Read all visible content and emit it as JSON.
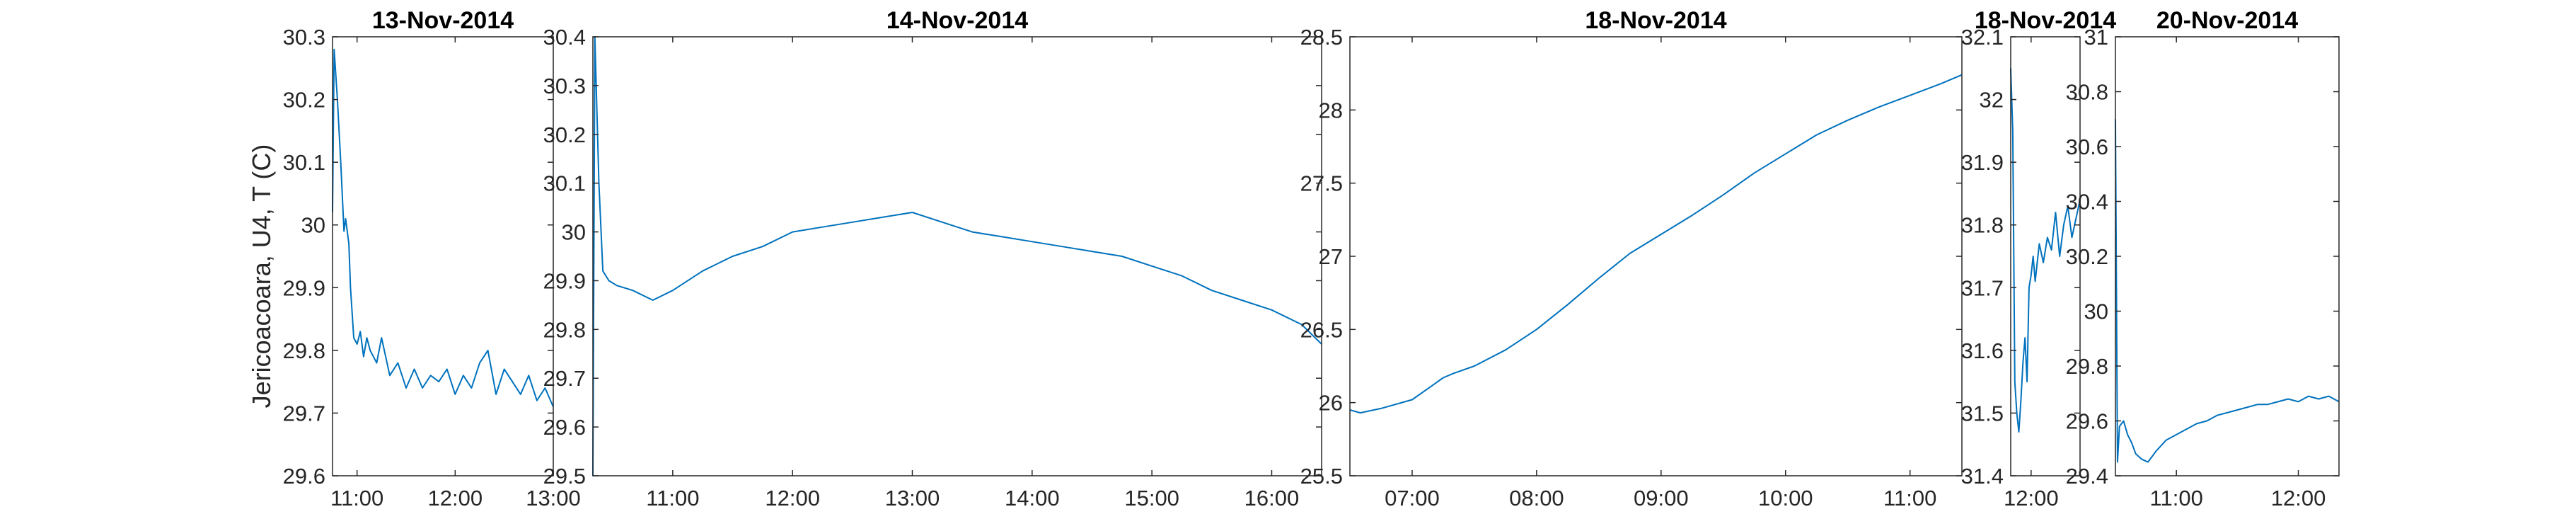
{
  "figure": {
    "ylabel": "Jericoacoara, U4, T (C)",
    "line_color": "#0072BD",
    "axis_color": "#262626"
  },
  "chart_data": [
    {
      "type": "line",
      "title": "13-Nov-2014",
      "ylabel": "Jericoacoara, U4, T (C)",
      "xlim": [
        "10:45",
        "13:00"
      ],
      "ylim": [
        29.6,
        30.3
      ],
      "yticks": [
        29.6,
        29.7,
        29.8,
        29.9,
        30,
        30.1,
        30.2,
        30.3
      ],
      "xticks": [
        "11:00",
        "12:00",
        "13:00"
      ],
      "grid": false,
      "series": [
        {
          "x": [
            "10:45",
            "10:46",
            "10:48",
            "10:50",
            "10:52",
            "10:53",
            "10:55",
            "10:56",
            "10:58",
            "11:00",
            "11:02",
            "11:04",
            "11:06",
            "11:08",
            "11:12",
            "11:15",
            "11:20",
            "11:25",
            "11:30",
            "11:35",
            "11:40",
            "11:45",
            "11:50",
            "11:55",
            "12:00",
            "12:05",
            "12:10",
            "12:15",
            "12:20",
            "12:25",
            "12:30",
            "12:35",
            "12:40",
            "12:45",
            "12:50",
            "12:55",
            "13:00"
          ],
          "y": [
            30.02,
            30.28,
            30.2,
            30.1,
            29.99,
            30.01,
            29.97,
            29.9,
            29.82,
            29.81,
            29.83,
            29.79,
            29.82,
            29.8,
            29.78,
            29.82,
            29.76,
            29.78,
            29.74,
            29.77,
            29.74,
            29.76,
            29.75,
            29.77,
            29.73,
            29.76,
            29.74,
            29.78,
            29.8,
            29.73,
            29.77,
            29.75,
            29.73,
            29.76,
            29.72,
            29.74,
            29.71
          ]
        }
      ]
    },
    {
      "type": "line",
      "title": "14-Nov-2014",
      "xlim": [
        "10:20",
        "16:25"
      ],
      "ylim": [
        29.5,
        30.4
      ],
      "yticks": [
        29.5,
        29.6,
        29.7,
        29.8,
        29.9,
        30,
        30.1,
        30.2,
        30.3,
        30.4
      ],
      "xticks": [
        "11:00",
        "12:00",
        "13:00",
        "14:00",
        "15:00",
        "16:00"
      ],
      "grid": false,
      "series": [
        {
          "x": [
            "10:20",
            "10:21",
            "10:23",
            "10:25",
            "10:28",
            "10:32",
            "10:40",
            "10:50",
            "11:00",
            "11:15",
            "11:30",
            "11:45",
            "12:00",
            "12:15",
            "12:30",
            "12:45",
            "13:00",
            "13:15",
            "13:30",
            "13:45",
            "14:00",
            "14:15",
            "14:30",
            "14:45",
            "15:00",
            "15:15",
            "15:30",
            "15:45",
            "16:00",
            "16:15",
            "16:25"
          ],
          "y": [
            29.5,
            30.4,
            30.1,
            29.92,
            29.9,
            29.89,
            29.88,
            29.86,
            29.88,
            29.92,
            29.95,
            29.97,
            30.0,
            30.01,
            30.02,
            30.03,
            30.04,
            30.02,
            30.0,
            29.99,
            29.98,
            29.97,
            29.96,
            29.95,
            29.93,
            29.91,
            29.88,
            29.86,
            29.84,
            29.81,
            29.77
          ]
        }
      ]
    },
    {
      "type": "line",
      "title": "18-Nov-2014",
      "xlim": [
        "06:30",
        "11:25"
      ],
      "ylim": [
        25.5,
        28.5
      ],
      "yticks": [
        25.5,
        26,
        26.5,
        27,
        27.5,
        28,
        28.5
      ],
      "xticks": [
        "07:00",
        "08:00",
        "09:00",
        "10:00",
        "11:00"
      ],
      "grid": false,
      "series": [
        {
          "x": [
            "06:30",
            "06:35",
            "06:45",
            "07:00",
            "07:10",
            "07:15",
            "07:20",
            "07:30",
            "07:45",
            "08:00",
            "08:15",
            "08:30",
            "08:45",
            "09:00",
            "09:15",
            "09:30",
            "09:45",
            "10:00",
            "10:15",
            "10:30",
            "10:45",
            "11:00",
            "11:15",
            "11:25"
          ],
          "y": [
            25.95,
            25.93,
            25.96,
            26.02,
            26.12,
            26.17,
            26.2,
            26.25,
            26.36,
            26.5,
            26.67,
            26.85,
            27.02,
            27.15,
            27.28,
            27.42,
            27.57,
            27.7,
            27.83,
            27.93,
            28.02,
            28.1,
            28.18,
            28.24
          ]
        }
      ]
    },
    {
      "type": "line",
      "title": "18-Nov-2014",
      "xlim": [
        "11:50",
        "12:24"
      ],
      "ylim": [
        31.4,
        32.1
      ],
      "yticks": [
        31.4,
        31.5,
        31.6,
        31.7,
        31.8,
        31.9,
        32,
        32.1
      ],
      "xticks": [
        "12:00"
      ],
      "grid": false,
      "series": [
        {
          "x": [
            "11:50",
            "11:51",
            "11:52",
            "11:53",
            "11:54",
            "11:55",
            "11:56",
            "11:57",
            "11:58",
            "11:59",
            "12:00",
            "12:01",
            "12:02",
            "12:04",
            "12:06",
            "12:08",
            "12:10",
            "12:12",
            "12:14",
            "12:16",
            "12:18",
            "12:20",
            "12:22",
            "12:24"
          ],
          "y": [
            32.05,
            31.95,
            31.55,
            31.5,
            31.47,
            31.52,
            31.58,
            31.62,
            31.55,
            31.7,
            31.72,
            31.75,
            31.71,
            31.77,
            31.74,
            31.78,
            31.76,
            31.82,
            31.75,
            31.8,
            31.83,
            31.78,
            31.81,
            31.84
          ]
        }
      ]
    },
    {
      "type": "line",
      "title": "20-Nov-2014",
      "xlim": [
        "10:30",
        "12:20"
      ],
      "ylim": [
        29.4,
        31
      ],
      "yticks": [
        29.4,
        29.6,
        29.8,
        30,
        30.2,
        30.4,
        30.6,
        30.8,
        31
      ],
      "xticks": [
        "11:00",
        "12:00"
      ],
      "grid": false,
      "series": [
        {
          "x": [
            "10:30",
            "10:31",
            "10:32",
            "10:34",
            "10:36",
            "10:38",
            "10:40",
            "10:43",
            "10:46",
            "10:50",
            "10:55",
            "11:00",
            "11:05",
            "11:10",
            "11:15",
            "11:20",
            "11:25",
            "11:30",
            "11:35",
            "11:40",
            "11:45",
            "11:50",
            "11:55",
            "12:00",
            "12:05",
            "12:10",
            "12:15",
            "12:20"
          ],
          "y": [
            30.7,
            29.45,
            29.58,
            29.6,
            29.55,
            29.52,
            29.48,
            29.46,
            29.45,
            29.49,
            29.53,
            29.55,
            29.57,
            29.59,
            29.6,
            29.62,
            29.63,
            29.64,
            29.65,
            29.66,
            29.66,
            29.67,
            29.68,
            29.67,
            29.69,
            29.68,
            29.69,
            29.67
          ]
        }
      ]
    }
  ]
}
